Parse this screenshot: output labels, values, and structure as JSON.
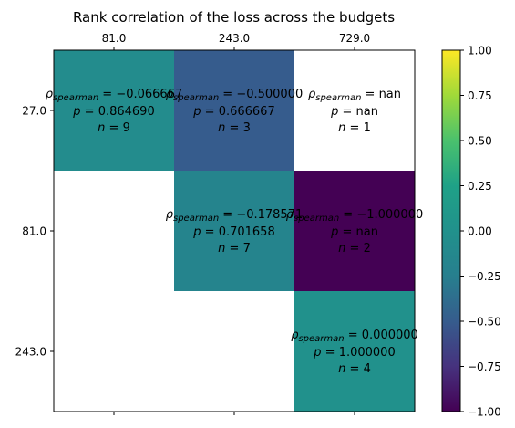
{
  "chart_data": {
    "type": "heatmap",
    "title": "Rank correlation of the loss across the budgets",
    "x_labels": [
      "81.0",
      "243.0",
      "729.0"
    ],
    "y_labels": [
      "27.0",
      "81.0",
      "243.0"
    ],
    "x_axis_position": "top",
    "cells": [
      {
        "row": 0,
        "col": 0,
        "rho": -0.066667,
        "rho_text": "−0.066667",
        "p_text": "0.864690",
        "n_text": "9"
      },
      {
        "row": 0,
        "col": 1,
        "rho": -0.5,
        "rho_text": "−0.500000",
        "p_text": "0.666667",
        "n_text": "3"
      },
      {
        "row": 0,
        "col": 2,
        "rho": null,
        "rho_text": "nan",
        "p_text": "nan",
        "n_text": "1"
      },
      {
        "row": 1,
        "col": 1,
        "rho": -0.178571,
        "rho_text": "−0.178571",
        "p_text": "0.701658",
        "n_text": "7"
      },
      {
        "row": 1,
        "col": 2,
        "rho": -1.0,
        "rho_text": "−1.000000",
        "p_text": "nan",
        "n_text": "2"
      },
      {
        "row": 2,
        "col": 2,
        "rho": 0.0,
        "rho_text": "0.000000",
        "p_text": "1.000000",
        "n_text": "4"
      }
    ],
    "annotation_symbols": {
      "rho": "ρ",
      "rho_subscript": "spearman",
      "p": "p",
      "n": "n"
    },
    "colorbar": {
      "min": -1.0,
      "max": 1.0,
      "colormap": "viridis",
      "ticks": [
        {
          "value": 1.0,
          "label": "1.00"
        },
        {
          "value": 0.75,
          "label": "0.75"
        },
        {
          "value": 0.5,
          "label": "0.50"
        },
        {
          "value": 0.25,
          "label": "0.25"
        },
        {
          "value": 0.0,
          "label": "0.00"
        },
        {
          "value": -0.25,
          "label": "−0.25"
        },
        {
          "value": -0.5,
          "label": "−0.50"
        },
        {
          "value": -0.75,
          "label": "−0.75"
        },
        {
          "value": -1.0,
          "label": "−1.00"
        }
      ]
    },
    "grid": false
  }
}
